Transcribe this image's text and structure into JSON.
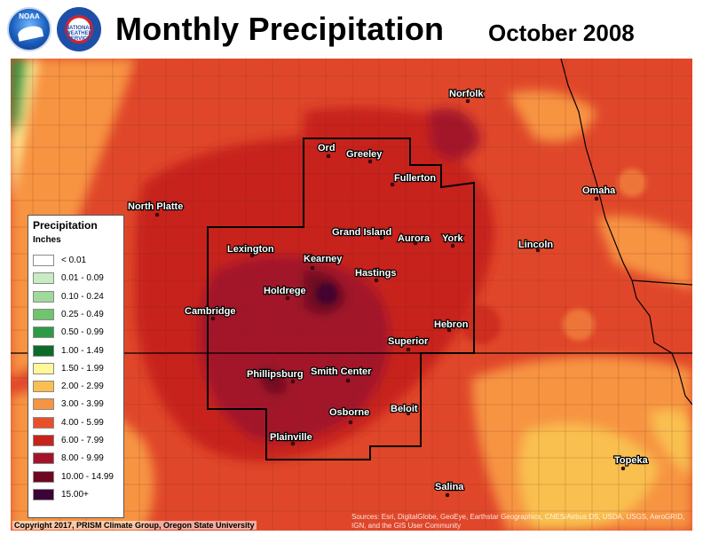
{
  "header": {
    "title": "Monthly Precipitation",
    "date": "October 2008",
    "logos": [
      {
        "name": "noaa-logo",
        "text": "NOAA"
      },
      {
        "name": "nws-logo",
        "text": "NATIONAL WEATHER SERVICE"
      }
    ]
  },
  "legend": {
    "title": "Precipitation",
    "units": "Inches",
    "bins": [
      {
        "label": "< 0.01",
        "color": "#ffffff"
      },
      {
        "label": "0.01 - 0.09",
        "color": "#c7ebc3"
      },
      {
        "label": "0.10 - 0.24",
        "color": "#a0d99b"
      },
      {
        "label": "0.25 - 0.49",
        "color": "#6fc46d"
      },
      {
        "label": "0.50 - 0.99",
        "color": "#2e9a45"
      },
      {
        "label": "1.00 - 1.49",
        "color": "#0d6a2a"
      },
      {
        "label": "1.50 - 1.99",
        "color": "#fff79a"
      },
      {
        "label": "2.00 - 2.99",
        "color": "#f9c04f"
      },
      {
        "label": "3.00 - 3.99",
        "color": "#f79442"
      },
      {
        "label": "4.00 - 5.99",
        "color": "#e8502b"
      },
      {
        "label": "6.00 - 7.99",
        "color": "#c7231c"
      },
      {
        "label": "8.00 - 9.99",
        "color": "#a3142a"
      },
      {
        "label": "10.00 - 14.99",
        "color": "#6e0820"
      },
      {
        "label": "15.00+",
        "color": "#3a0436"
      }
    ]
  },
  "cities": [
    {
      "name": "Norfolk"
    },
    {
      "name": "Ord"
    },
    {
      "name": "Greeley"
    },
    {
      "name": "Fullerton"
    },
    {
      "name": "North Platte"
    },
    {
      "name": "Omaha"
    },
    {
      "name": "Grand Island"
    },
    {
      "name": "Aurora"
    },
    {
      "name": "York"
    },
    {
      "name": "Lexington"
    },
    {
      "name": "Kearney"
    },
    {
      "name": "Lincoln"
    },
    {
      "name": "Hastings"
    },
    {
      "name": "Holdrege"
    },
    {
      "name": "Cambridge"
    },
    {
      "name": "Hebron"
    },
    {
      "name": "Superior"
    },
    {
      "name": "Phillipsburg"
    },
    {
      "name": "Smith Center"
    },
    {
      "name": "Beloit"
    },
    {
      "name": "Osborne"
    },
    {
      "name": "Plainville"
    },
    {
      "name": "Topeka"
    },
    {
      "name": "Salina"
    }
  ],
  "footer": {
    "copyright": "Copyright 2017, PRISM Climate Group, Oregon State University",
    "sources": "Sources: Esri, DigitalGlobe, GeoEye, Earthstar Geographics, CNES/Airbus DS, USDA, USGS, AeroGRID, IGN, and the GIS User Community"
  }
}
